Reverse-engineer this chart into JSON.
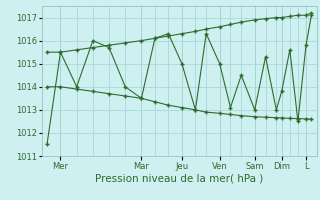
{
  "title": "",
  "xlabel": "Pression niveau de la mer( hPa )",
  "bg_color": "#cff0f0",
  "line_color": "#2d6b2d",
  "grid_color": "#a8d8d8",
  "ylim": [
    1011,
    1017.5
  ],
  "yticks": [
    1011,
    1012,
    1013,
    1014,
    1015,
    1016,
    1017
  ],
  "x_day_labels": [
    "Mer",
    "Mar",
    "Jeu",
    "Ven",
    "Sam",
    "Dim",
    "L"
  ],
  "x_day_positions": [
    0.07,
    0.37,
    0.52,
    0.66,
    0.79,
    0.89,
    0.98
  ],
  "x_main": [
    0.02,
    0.07,
    0.13,
    0.19,
    0.25,
    0.31,
    0.37,
    0.42,
    0.47,
    0.52,
    0.57,
    0.61,
    0.66,
    0.7,
    0.74,
    0.79,
    0.83,
    0.87,
    0.89,
    0.92,
    0.95,
    0.98,
    1.0
  ],
  "y_zigzag": [
    1011.5,
    1015.5,
    1014.0,
    1016.0,
    1015.7,
    1014.0,
    1013.5,
    1016.1,
    1016.3,
    1015.0,
    1013.0,
    1016.3,
    1015.0,
    1013.1,
    1014.5,
    1013.0,
    1015.3,
    1013.0,
    1013.8,
    1015.6,
    1012.5,
    1015.8,
    1017.1
  ],
  "y_upper": [
    1015.5,
    1015.5,
    1015.6,
    1015.7,
    1015.8,
    1015.9,
    1016.0,
    1016.1,
    1016.2,
    1016.3,
    1016.4,
    1016.5,
    1016.6,
    1016.7,
    1016.8,
    1016.9,
    1016.95,
    1017.0,
    1017.0,
    1017.05,
    1017.1,
    1017.1,
    1017.2
  ],
  "y_lower": [
    1014.0,
    1014.0,
    1013.9,
    1013.8,
    1013.7,
    1013.6,
    1013.5,
    1013.35,
    1013.2,
    1013.1,
    1013.0,
    1012.9,
    1012.85,
    1012.8,
    1012.75,
    1012.7,
    1012.68,
    1012.66,
    1012.65,
    1012.63,
    1012.62,
    1012.61,
    1012.6
  ]
}
